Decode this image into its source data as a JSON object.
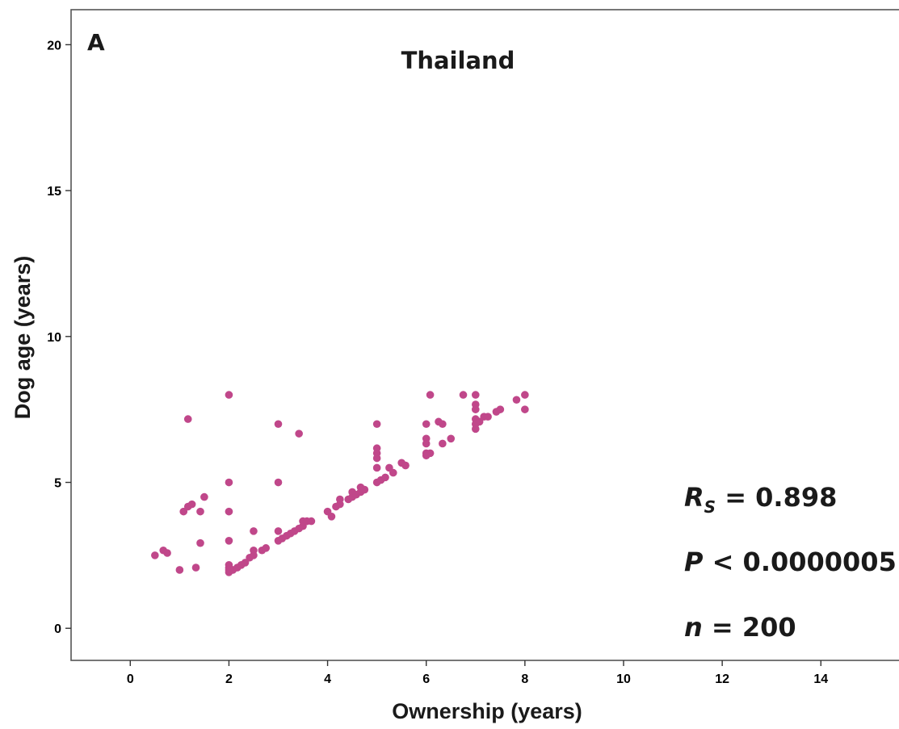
{
  "chart_data": {
    "type": "scatter",
    "panel_label": "A",
    "title": "Thailand",
    "xlabel": "Ownership (years)",
    "ylabel": "Dog age (years)",
    "xlim": [
      -1.2,
      15.6
    ],
    "ylim": [
      -1.1,
      21.2
    ],
    "xticks": [
      0,
      2,
      4,
      6,
      8,
      10,
      12,
      14
    ],
    "yticks": [
      0,
      5,
      10,
      15,
      20
    ],
    "grid": false,
    "marker_color": "#c0478a",
    "stats": {
      "rs_symbol": "R",
      "rs_sub": "S",
      "rs_eq": " = 0.898",
      "p_symbol": "P",
      "p_eq": " < 0.0000005",
      "n_symbol": "n",
      "n_eq": " = 200"
    },
    "points": [
      [
        0.5,
        2.5
      ],
      [
        0.67,
        2.67
      ],
      [
        0.75,
        2.58
      ],
      [
        1.0,
        2.0
      ],
      [
        1.08,
        4.0
      ],
      [
        1.17,
        4.17
      ],
      [
        1.17,
        7.17
      ],
      [
        1.25,
        4.25
      ],
      [
        1.33,
        2.08
      ],
      [
        1.42,
        4.0
      ],
      [
        1.42,
        2.92
      ],
      [
        1.5,
        4.5
      ],
      [
        2.0,
        8.0
      ],
      [
        2.0,
        5.0
      ],
      [
        2.0,
        4.0
      ],
      [
        2.0,
        3.0
      ],
      [
        2.0,
        2.17
      ],
      [
        2.0,
        2.08
      ],
      [
        2.0,
        2.0
      ],
      [
        2.0,
        1.92
      ],
      [
        2.08,
        2.0
      ],
      [
        2.17,
        2.08
      ],
      [
        2.25,
        2.17
      ],
      [
        2.33,
        2.25
      ],
      [
        2.42,
        2.42
      ],
      [
        2.5,
        2.5
      ],
      [
        2.5,
        2.67
      ],
      [
        2.5,
        3.33
      ],
      [
        2.67,
        2.67
      ],
      [
        2.75,
        2.75
      ],
      [
        3.0,
        7.0
      ],
      [
        3.0,
        5.0
      ],
      [
        3.0,
        3.33
      ],
      [
        3.0,
        3.0
      ],
      [
        3.08,
        3.08
      ],
      [
        3.17,
        3.17
      ],
      [
        3.25,
        3.25
      ],
      [
        3.33,
        3.33
      ],
      [
        3.42,
        3.42
      ],
      [
        3.42,
        6.67
      ],
      [
        3.5,
        3.5
      ],
      [
        3.5,
        3.67
      ],
      [
        3.58,
        3.67
      ],
      [
        3.67,
        3.67
      ],
      [
        4.0,
        4.0
      ],
      [
        4.08,
        3.83
      ],
      [
        4.17,
        4.17
      ],
      [
        4.25,
        4.25
      ],
      [
        4.25,
        4.42
      ],
      [
        4.42,
        4.42
      ],
      [
        4.5,
        4.5
      ],
      [
        4.5,
        4.67
      ],
      [
        4.58,
        4.58
      ],
      [
        4.67,
        4.67
      ],
      [
        4.67,
        4.83
      ],
      [
        4.75,
        4.75
      ],
      [
        5.0,
        7.0
      ],
      [
        5.0,
        6.17
      ],
      [
        5.0,
        6.0
      ],
      [
        5.0,
        5.83
      ],
      [
        5.0,
        5.5
      ],
      [
        5.0,
        5.0
      ],
      [
        5.08,
        5.08
      ],
      [
        5.17,
        5.17
      ],
      [
        5.25,
        5.5
      ],
      [
        5.33,
        5.33
      ],
      [
        5.5,
        5.67
      ],
      [
        5.58,
        5.58
      ],
      [
        6.0,
        7.0
      ],
      [
        6.0,
        6.5
      ],
      [
        6.0,
        6.33
      ],
      [
        6.0,
        6.0
      ],
      [
        6.0,
        5.92
      ],
      [
        6.08,
        8.0
      ],
      [
        6.08,
        6.0
      ],
      [
        6.25,
        7.08
      ],
      [
        6.33,
        6.33
      ],
      [
        6.33,
        7.0
      ],
      [
        6.5,
        6.5
      ],
      [
        6.75,
        8.0
      ],
      [
        7.0,
        8.0
      ],
      [
        7.0,
        7.67
      ],
      [
        7.0,
        7.5
      ],
      [
        7.0,
        7.17
      ],
      [
        7.0,
        7.0
      ],
      [
        7.0,
        6.83
      ],
      [
        7.08,
        7.08
      ],
      [
        7.17,
        7.25
      ],
      [
        7.25,
        7.25
      ],
      [
        7.42,
        7.42
      ],
      [
        7.5,
        7.5
      ],
      [
        7.83,
        7.83
      ],
      [
        8.0,
        8.0
      ],
      [
        8.0,
        7.5
      ]
    ]
  }
}
